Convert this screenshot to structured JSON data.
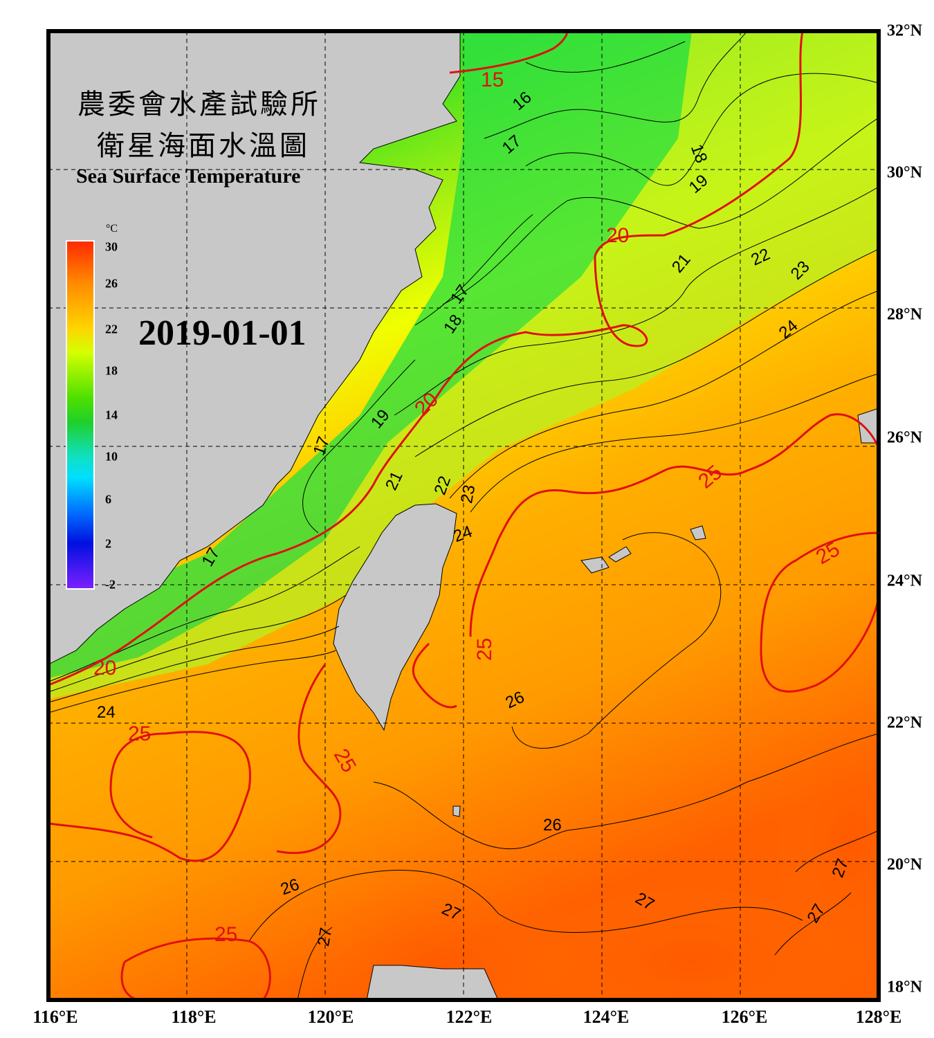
{
  "title": {
    "zh_line1": "農委會水產試驗所",
    "zh_line2": "衛星海面水溫圖",
    "en": "Sea Surface Temperature"
  },
  "date": "2019-01-01",
  "colorbar": {
    "unit": "°C",
    "ticks": [
      "30",
      "26",
      "22",
      "18",
      "14",
      "10",
      "6",
      "2",
      "-2"
    ]
  },
  "axes": {
    "lon_labels": [
      "116°E",
      "118°E",
      "120°E",
      "122°E",
      "124°E",
      "126°E",
      "128°E"
    ],
    "lat_labels": [
      "32°N",
      "30°N",
      "28°N",
      "26°N",
      "24°N",
      "22°N",
      "20°N",
      "18°N"
    ],
    "lon_range": [
      116,
      128
    ],
    "lat_range": [
      18,
      32
    ],
    "grid": "dashed"
  },
  "isotherm_labels": {
    "major": [
      "15",
      "20",
      "20",
      "20",
      "25",
      "25",
      "25",
      "25",
      "25",
      "25"
    ],
    "minor": [
      "16",
      "17",
      "17",
      "17",
      "17",
      "18",
      "18",
      "19",
      "19",
      "21",
      "21",
      "22",
      "22",
      "23",
      "23",
      "24",
      "24",
      "24",
      "26",
      "26",
      "26",
      "27",
      "27",
      "27",
      "27",
      "27"
    ]
  },
  "colors": {
    "land": "#c8c8c8",
    "cold_water": "#20d040",
    "mid_water": "#e8ff10",
    "warm_water": "#ffa800",
    "hot_water": "#ff6a00",
    "major_isotherm": "#e01010",
    "minor_isotherm": "#000000"
  }
}
